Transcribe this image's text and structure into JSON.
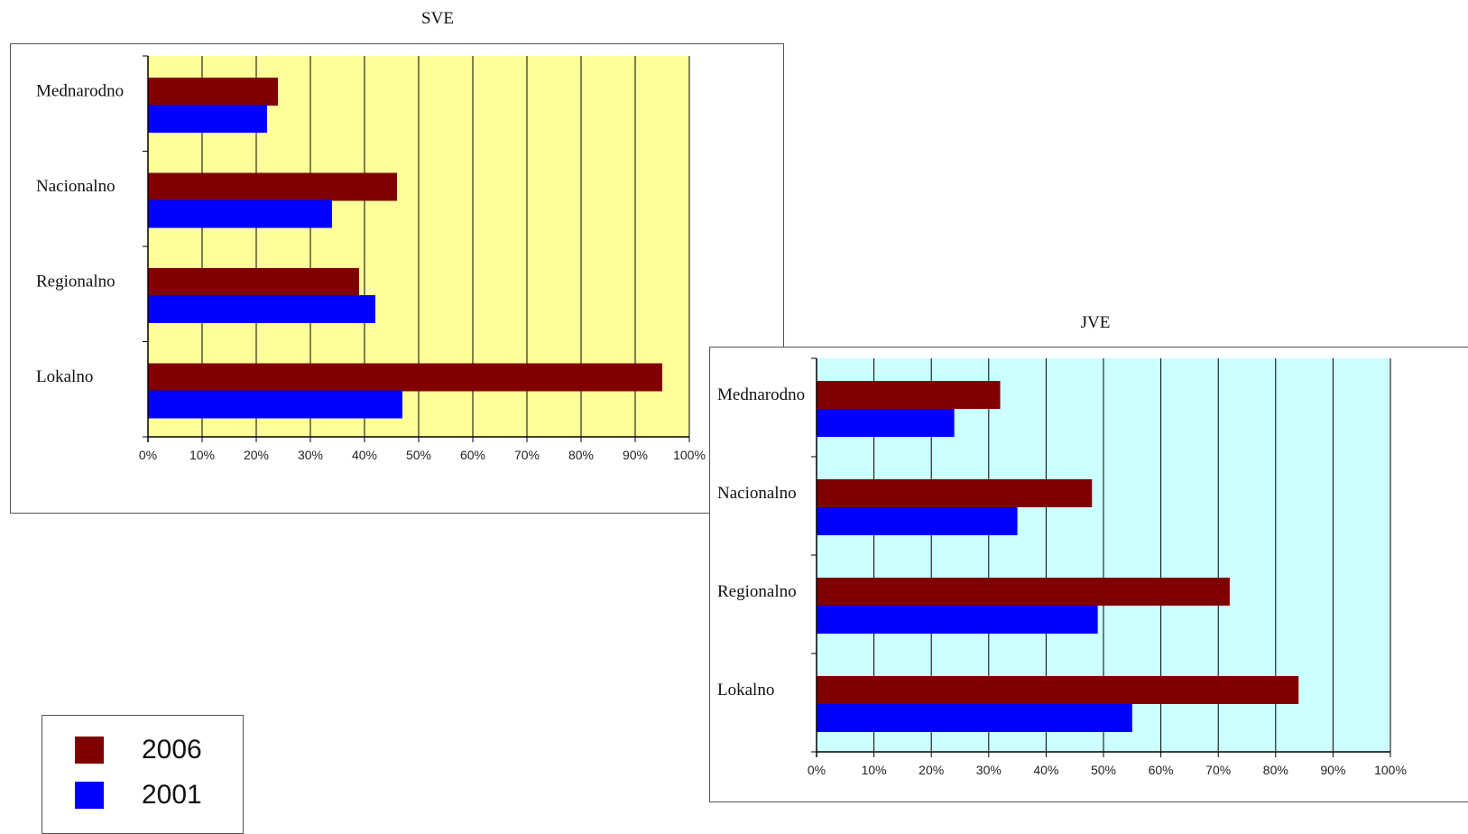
{
  "series_colors": {
    "2006": "#800000",
    "2001": "#0000ff"
  },
  "legend": [
    {
      "label": "2006",
      "color": "#800000"
    },
    {
      "label": "2001",
      "color": "#0000ff"
    }
  ],
  "chart_data": [
    {
      "type": "bar",
      "orientation": "horizontal",
      "title": "SVE",
      "plot_background": "#ffff99",
      "categories": [
        "Mednarodno",
        "Nacionalno",
        "Regionalno",
        "Lokalno"
      ],
      "series": [
        {
          "name": "2006",
          "values": [
            24,
            46,
            39,
            95
          ]
        },
        {
          "name": "2001",
          "values": [
            22,
            34,
            42,
            47
          ]
        }
      ],
      "xlim": [
        0,
        100
      ],
      "xticks": [
        "0%",
        "10%",
        "20%",
        "30%",
        "40%",
        "50%",
        "60%",
        "70%",
        "80%",
        "90%",
        "100%"
      ],
      "grid": true,
      "legend": "bottom-left"
    },
    {
      "type": "bar",
      "orientation": "horizontal",
      "title": "JVE",
      "plot_background": "#ccffff",
      "categories": [
        "Mednarodno",
        "Nacionalno",
        "Regionalno",
        "Lokalno"
      ],
      "series": [
        {
          "name": "2006",
          "values": [
            32,
            48,
            72,
            84
          ]
        },
        {
          "name": "2001",
          "values": [
            24,
            35,
            49,
            55
          ]
        }
      ],
      "xlim": [
        0,
        100
      ],
      "xticks": [
        "0%",
        "10%",
        "20%",
        "30%",
        "40%",
        "50%",
        "60%",
        "70%",
        "80%",
        "90%",
        "100%"
      ],
      "grid": true,
      "legend": "bottom-left"
    }
  ]
}
